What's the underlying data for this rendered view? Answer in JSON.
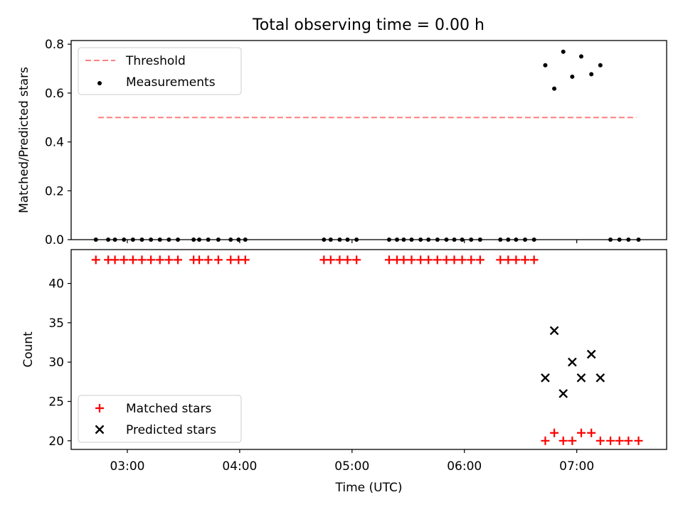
{
  "chart_data": [
    {
      "type": "scatter",
      "title": "Total observing time = 0.00 h",
      "xlabel": "",
      "ylabel": "Matched/Predicted stars",
      "ylim": [
        0,
        0.815
      ],
      "xlim": [
        2.5,
        7.8
      ],
      "x_tick_labels": [
        "03:00",
        "04:00",
        "05:00",
        "06:00",
        "07:00"
      ],
      "x_ticks": [
        3,
        4,
        5,
        6,
        7
      ],
      "show_x_tick_labels": false,
      "y_ticks": [
        0,
        0.2,
        0.4,
        0.6,
        0.8
      ],
      "y_tick_labels": [
        "0.0",
        "0.2",
        "0.4",
        "0.6",
        "0.8"
      ],
      "grid": false,
      "legend_position": "upper-left",
      "series": [
        {
          "name": "Threshold",
          "style": "dashed-line",
          "color": "#ff7f7f",
          "x": [
            2.74,
            7.53
          ],
          "y": [
            0.5,
            0.5
          ]
        },
        {
          "name": "Measurements",
          "style": "dot",
          "color": "#000000",
          "x": [
            2.72,
            2.83,
            2.89,
            2.97,
            3.05,
            3.13,
            3.21,
            3.29,
            3.37,
            3.45,
            3.59,
            3.64,
            3.72,
            3.81,
            3.92,
            3.99,
            4.05,
            4.75,
            4.81,
            4.89,
            4.96,
            5.04,
            5.33,
            5.4,
            5.46,
            5.53,
            5.61,
            5.68,
            5.76,
            5.84,
            5.91,
            5.98,
            6.06,
            6.14,
            6.32,
            6.39,
            6.46,
            6.54,
            6.62,
            6.72,
            6.8,
            6.88,
            6.96,
            7.04,
            7.13,
            7.21,
            7.3,
            7.38,
            7.46,
            7.55
          ],
          "y": [
            0,
            0,
            0,
            0,
            0,
            0,
            0,
            0,
            0,
            0,
            0,
            0,
            0,
            0,
            0,
            0,
            0,
            0,
            0,
            0,
            0,
            0,
            0,
            0,
            0,
            0,
            0,
            0,
            0,
            0,
            0,
            0,
            0,
            0,
            0,
            0,
            0,
            0,
            0,
            0.714,
            0.618,
            0.769,
            0.667,
            0.75,
            0.677,
            0.714,
            0,
            0,
            0,
            0
          ]
        }
      ]
    },
    {
      "type": "scatter",
      "title": "",
      "xlabel": "Time (UTC)",
      "ylabel": "Count",
      "ylim": [
        18.9,
        44.3
      ],
      "xlim": [
        2.5,
        7.8
      ],
      "x_ticks": [
        3,
        4,
        5,
        6,
        7
      ],
      "x_tick_labels": [
        "03:00",
        "04:00",
        "05:00",
        "06:00",
        "07:00"
      ],
      "show_x_tick_labels": true,
      "y_ticks": [
        20,
        25,
        30,
        35,
        40
      ],
      "y_tick_labels": [
        "20",
        "25",
        "30",
        "35",
        "40"
      ],
      "grid": false,
      "legend_position": "lower-left",
      "series": [
        {
          "name": "Matched stars",
          "marker": "plus",
          "color": "#ff0000",
          "x": [
            2.72,
            2.83,
            2.89,
            2.97,
            3.05,
            3.13,
            3.21,
            3.29,
            3.37,
            3.45,
            3.59,
            3.64,
            3.72,
            3.81,
            3.92,
            3.99,
            4.05,
            4.75,
            4.81,
            4.89,
            4.96,
            5.04,
            5.33,
            5.4,
            5.46,
            5.53,
            5.61,
            5.68,
            5.76,
            5.84,
            5.91,
            5.98,
            6.06,
            6.14,
            6.32,
            6.39,
            6.46,
            6.54,
            6.62,
            6.72,
            6.8,
            6.88,
            6.96,
            7.04,
            7.13,
            7.21,
            7.3,
            7.38,
            7.46,
            7.55
          ],
          "y": [
            43,
            43,
            43,
            43,
            43,
            43,
            43,
            43,
            43,
            43,
            43,
            43,
            43,
            43,
            43,
            43,
            43,
            43,
            43,
            43,
            43,
            43,
            43,
            43,
            43,
            43,
            43,
            43,
            43,
            43,
            43,
            43,
            43,
            43,
            43,
            43,
            43,
            43,
            43,
            20,
            21,
            20,
            20,
            21,
            21,
            20,
            20,
            20,
            20,
            20
          ]
        },
        {
          "name": "Predicted stars",
          "marker": "x",
          "color": "#000000",
          "x": [
            6.72,
            6.8,
            6.88,
            6.96,
            7.04,
            7.13,
            7.21
          ],
          "y": [
            28,
            34,
            26,
            30,
            28,
            31,
            28
          ]
        }
      ]
    }
  ]
}
